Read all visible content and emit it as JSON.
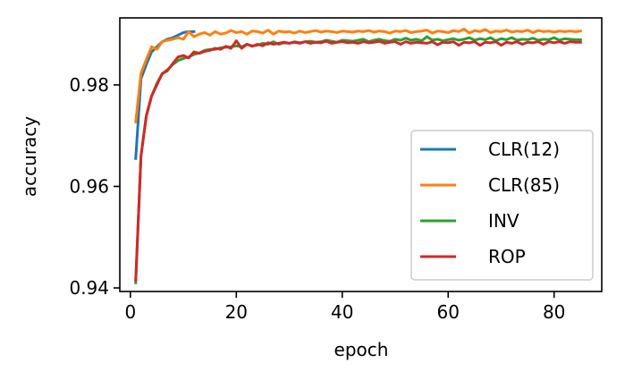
{
  "chart_data": {
    "type": "line",
    "xlabel": "epoch",
    "ylabel": "accuracy",
    "xlim": [
      -2,
      89
    ],
    "ylim": [
      0.9393,
      0.9932
    ],
    "xticks": [
      0,
      20,
      40,
      60,
      80
    ],
    "yticks": [
      0.94,
      0.96,
      0.98
    ],
    "ytick_labels": [
      "0.94",
      "0.96",
      "0.98"
    ],
    "grid": false,
    "legend_position": "lower-right",
    "series": [
      {
        "name": "CLR(12)",
        "color": "#1f77b4",
        "x": [
          1,
          2,
          3,
          4,
          5,
          6,
          7,
          8,
          9,
          10,
          11,
          12
        ],
        "y": [
          0.9655,
          0.9812,
          0.984,
          0.9865,
          0.9875,
          0.9885,
          0.989,
          0.9893,
          0.9898,
          0.9903,
          0.9905,
          0.9905
        ]
      },
      {
        "name": "CLR(85)",
        "color": "#ff7f0e",
        "x": [
          1,
          2,
          3,
          4,
          5,
          6,
          7,
          8,
          9,
          10,
          11,
          12,
          13,
          14,
          15,
          16,
          17,
          18,
          19,
          20,
          21,
          22,
          23,
          24,
          25,
          26,
          27,
          28,
          29,
          30,
          31,
          32,
          33,
          34,
          35,
          36,
          37,
          38,
          39,
          40,
          41,
          42,
          43,
          44,
          45,
          46,
          47,
          48,
          49,
          50,
          51,
          52,
          53,
          54,
          55,
          56,
          57,
          58,
          59,
          60,
          61,
          62,
          63,
          64,
          65,
          66,
          67,
          68,
          69,
          70,
          71,
          72,
          73,
          74,
          75,
          76,
          77,
          78,
          79,
          80,
          81,
          82,
          83,
          84,
          85
        ],
        "y": [
          0.9727,
          0.9823,
          0.985,
          0.9875,
          0.987,
          0.9885,
          0.9888,
          0.989,
          0.9893,
          0.989,
          0.9905,
          0.9895,
          0.99,
          0.9903,
          0.9898,
          0.9905,
          0.99,
          0.9902,
          0.9907,
          0.9903,
          0.9905,
          0.99,
          0.9906,
          0.9905,
          0.9902,
          0.9908,
          0.99,
          0.9906,
          0.9904,
          0.9905,
          0.9902,
          0.9906,
          0.9903,
          0.9905,
          0.9907,
          0.9904,
          0.9906,
          0.9905,
          0.9903,
          0.9906,
          0.9905,
          0.9904,
          0.9906,
          0.9905,
          0.9907,
          0.9904,
          0.9906,
          0.9905,
          0.9902,
          0.9906,
          0.9905,
          0.9907,
          0.9903,
          0.9905,
          0.9906,
          0.9908,
          0.9902,
          0.9906,
          0.9905,
          0.9903,
          0.9907,
          0.9905,
          0.991,
          0.9902,
          0.9907,
          0.9905,
          0.9909,
          0.9903,
          0.9906,
          0.9905,
          0.9908,
          0.9904,
          0.9906,
          0.9905,
          0.9908,
          0.9903,
          0.9907,
          0.9905,
          0.9906,
          0.9904,
          0.9906,
          0.9905,
          0.9906,
          0.9905,
          0.9906
        ]
      },
      {
        "name": "INV",
        "color": "#2ca02c",
        "x": [
          1,
          2,
          3,
          4,
          5,
          6,
          7,
          8,
          9,
          10,
          11,
          12,
          13,
          14,
          15,
          16,
          17,
          18,
          19,
          20,
          21,
          22,
          23,
          24,
          25,
          26,
          27,
          28,
          29,
          30,
          31,
          32,
          33,
          34,
          35,
          36,
          37,
          38,
          39,
          40,
          41,
          42,
          43,
          44,
          45,
          46,
          47,
          48,
          49,
          50,
          51,
          52,
          53,
          54,
          55,
          56,
          57,
          58,
          59,
          60,
          61,
          62,
          63,
          64,
          65,
          66,
          67,
          68,
          69,
          70,
          71,
          72,
          73,
          74,
          75,
          76,
          77,
          78,
          79,
          80,
          81,
          82,
          83,
          84,
          85
        ],
        "y": [
          0.941,
          0.966,
          0.974,
          0.9778,
          0.9803,
          0.9822,
          0.983,
          0.984,
          0.9848,
          0.9852,
          0.9855,
          0.986,
          0.9863,
          0.9868,
          0.987,
          0.987,
          0.9873,
          0.9874,
          0.9875,
          0.9877,
          0.9875,
          0.988,
          0.9877,
          0.9878,
          0.9882,
          0.988,
          0.9885,
          0.988,
          0.9883,
          0.9882,
          0.9885,
          0.9883,
          0.9885,
          0.9886,
          0.9884,
          0.9885,
          0.9888,
          0.9886,
          0.9884,
          0.9888,
          0.9887,
          0.9886,
          0.9888,
          0.989,
          0.9885,
          0.9888,
          0.989,
          0.9887,
          0.9886,
          0.989,
          0.9888,
          0.9892,
          0.9888,
          0.989,
          0.9887,
          0.9895,
          0.9888,
          0.989,
          0.9887,
          0.9889,
          0.9891,
          0.9888,
          0.989,
          0.9893,
          0.9888,
          0.9891,
          0.9889,
          0.9893,
          0.9887,
          0.9891,
          0.9889,
          0.9893,
          0.9888,
          0.989,
          0.9889,
          0.9892,
          0.9888,
          0.989,
          0.9889,
          0.9893,
          0.9888,
          0.9891,
          0.989,
          0.9889,
          0.9889
        ]
      },
      {
        "name": "ROP",
        "color": "#d62728",
        "x": [
          1,
          2,
          3,
          4,
          5,
          6,
          7,
          8,
          9,
          10,
          11,
          12,
          13,
          14,
          15,
          16,
          17,
          18,
          19,
          20,
          21,
          22,
          23,
          24,
          25,
          26,
          27,
          28,
          29,
          30,
          31,
          32,
          33,
          34,
          35,
          36,
          37,
          38,
          39,
          40,
          41,
          42,
          43,
          44,
          45,
          46,
          47,
          48,
          49,
          50,
          51,
          52,
          53,
          54,
          55,
          56,
          57,
          58,
          59,
          60,
          61,
          62,
          63,
          64,
          65,
          66,
          67,
          68,
          69,
          70,
          71,
          72,
          73,
          74,
          75,
          76,
          77,
          78,
          79,
          80,
          81,
          82,
          83,
          84,
          85
        ],
        "y": [
          0.9415,
          0.966,
          0.9738,
          0.9778,
          0.98,
          0.9822,
          0.9828,
          0.9842,
          0.9855,
          0.9858,
          0.9853,
          0.9865,
          0.9862,
          0.9866,
          0.9868,
          0.9872,
          0.987,
          0.9876,
          0.9872,
          0.9887,
          0.9872,
          0.988,
          0.9876,
          0.988,
          0.9877,
          0.9883,
          0.988,
          0.9882,
          0.9884,
          0.9882,
          0.9884,
          0.9882,
          0.9885,
          0.9882,
          0.9884,
          0.9883,
          0.9886,
          0.9882,
          0.9884,
          0.9885,
          0.9883,
          0.9884,
          0.9882,
          0.9885,
          0.9883,
          0.9884,
          0.9886,
          0.9882,
          0.9884,
          0.9885,
          0.988,
          0.9885,
          0.9882,
          0.9884,
          0.9883,
          0.9882,
          0.9885,
          0.9879,
          0.9884,
          0.9883,
          0.9885,
          0.9878,
          0.9884,
          0.9883,
          0.9885,
          0.9878,
          0.9884,
          0.9883,
          0.9885,
          0.9878,
          0.9884,
          0.9882,
          0.9885,
          0.988,
          0.9884,
          0.9883,
          0.9885,
          0.988,
          0.9885,
          0.9883,
          0.9885,
          0.9882,
          0.9885,
          0.9884,
          0.9884
        ]
      }
    ]
  }
}
